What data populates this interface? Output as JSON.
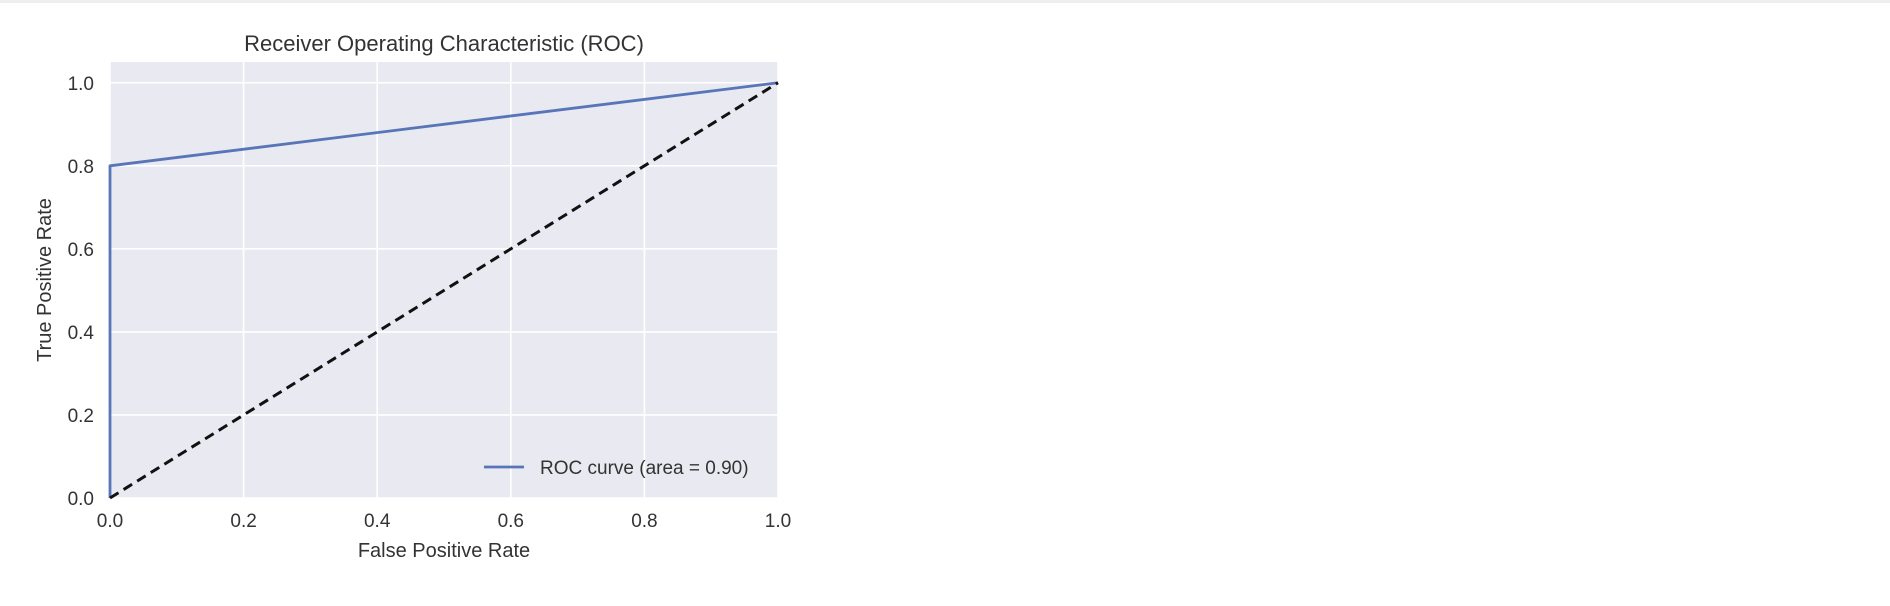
{
  "chart_data": {
    "type": "line",
    "title": "Receiver Operating Characteristic (ROC)",
    "xlabel": "False Positive Rate",
    "ylabel": "True Positive Rate",
    "xlim": [
      0.0,
      1.0
    ],
    "ylim": [
      0.0,
      1.05
    ],
    "x_ticks": [
      "0.0",
      "0.2",
      "0.4",
      "0.6",
      "0.8",
      "1.0"
    ],
    "y_ticks": [
      "0.0",
      "0.2",
      "0.4",
      "0.6",
      "0.8",
      "1.0"
    ],
    "grid": true,
    "legend_position": "lower-right",
    "series": [
      {
        "name": "ROC curve (area = 0.90)",
        "color": "#5875b8",
        "style": "solid",
        "x": [
          0.0,
          0.0,
          1.0
        ],
        "y": [
          0.0,
          0.8,
          1.0
        ]
      },
      {
        "color": "#111111",
        "style": "dashed",
        "x": [
          0.0,
          1.0
        ],
        "y": [
          0.0,
          1.0
        ]
      }
    ],
    "colors": {
      "plot_background": "#e9e9f1",
      "grid": "#ffffff"
    }
  }
}
